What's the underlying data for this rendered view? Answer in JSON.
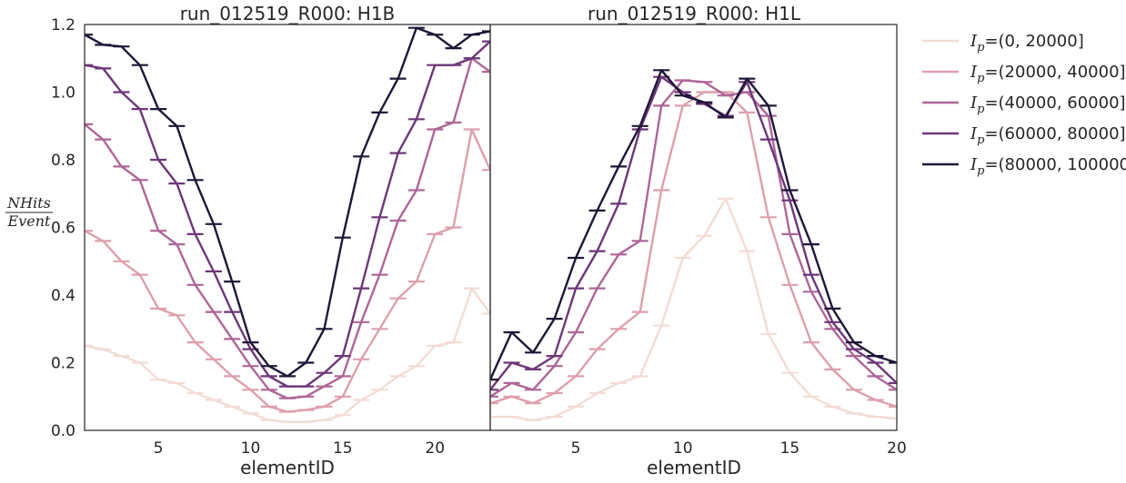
{
  "chart_data": {
    "type": "line",
    "ylabel_numerator": "NHits",
    "ylabel_denominator": "Event",
    "yticks": [
      "0.0",
      "0.2",
      "0.4",
      "0.6",
      "0.8",
      "1.0",
      "1.2"
    ],
    "ylim": [
      0,
      1.2
    ],
    "grid": false,
    "legend_position": "outside-right",
    "legend": {
      "symbol": "I",
      "subscript": "p",
      "series_labels": [
        "=(0, 20000]",
        "=(20000, 40000]",
        "=(40000, 60000]",
        "=(60000, 80000]",
        "=(80000, 100000]"
      ]
    },
    "series_colors": [
      "#f1ddd6",
      "#dda0ad",
      "#ad6796",
      "#6d3779",
      "#1f1637"
    ],
    "panels": [
      {
        "title": "run_012519_R000: H1B",
        "xlabel": "elementID",
        "xlim": [
          1,
          23
        ],
        "xticks": [
          5,
          10,
          15,
          20
        ],
        "x": [
          1,
          2,
          3,
          4,
          5,
          6,
          7,
          8,
          9,
          10,
          11,
          12,
          13,
          14,
          15,
          16,
          17,
          18,
          19,
          20,
          21,
          22,
          23
        ],
        "series": [
          {
            "values": [
              0.25,
              0.24,
              0.22,
              0.2,
              0.15,
              0.14,
              0.11,
              0.09,
              0.07,
              0.05,
              0.03,
              0.025,
              0.025,
              0.03,
              0.045,
              0.09,
              0.12,
              0.16,
              0.19,
              0.25,
              0.26,
              0.42,
              0.345
            ]
          },
          {
            "values": [
              0.59,
              0.56,
              0.5,
              0.46,
              0.36,
              0.34,
              0.26,
              0.21,
              0.16,
              0.12,
              0.07,
              0.055,
              0.06,
              0.07,
              0.1,
              0.21,
              0.3,
              0.39,
              0.44,
              0.58,
              0.6,
              0.89,
              0.77
            ]
          },
          {
            "values": [
              0.905,
              0.86,
              0.78,
              0.74,
              0.59,
              0.55,
              0.43,
              0.35,
              0.27,
              0.19,
              0.12,
              0.095,
              0.1,
              0.13,
              0.16,
              0.32,
              0.46,
              0.62,
              0.71,
              0.89,
              0.91,
              1.1,
              1.06
            ]
          },
          {
            "values": [
              1.08,
              1.07,
              1.0,
              0.95,
              0.8,
              0.73,
              0.58,
              0.47,
              0.35,
              0.24,
              0.16,
              0.13,
              0.13,
              0.17,
              0.22,
              0.42,
              0.63,
              0.82,
              0.92,
              1.08,
              1.08,
              1.1,
              1.15
            ]
          },
          {
            "values": [
              1.17,
              1.14,
              1.135,
              1.08,
              0.95,
              0.9,
              0.74,
              0.61,
              0.44,
              0.26,
              0.19,
              0.16,
              0.2,
              0.3,
              0.57,
              0.81,
              0.94,
              1.04,
              1.19,
              1.17,
              1.13,
              1.17,
              1.18
            ]
          }
        ]
      },
      {
        "title": "run_012519_R000: H1L",
        "xlabel": "elementID",
        "xlim": [
          1,
          20
        ],
        "xticks": [
          5,
          10,
          15,
          20
        ],
        "x": [
          1,
          2,
          3,
          4,
          5,
          6,
          7,
          8,
          9,
          10,
          11,
          12,
          13,
          14,
          15,
          16,
          17,
          18,
          19,
          20
        ],
        "series": [
          {
            "values": [
              0.04,
              0.04,
              0.03,
              0.04,
              0.07,
              0.11,
              0.14,
              0.16,
              0.31,
              0.51,
              0.575,
              0.685,
              0.53,
              0.285,
              0.17,
              0.1,
              0.07,
              0.05,
              0.04,
              0.035
            ]
          },
          {
            "values": [
              0.08,
              0.1,
              0.08,
              0.11,
              0.16,
              0.24,
              0.3,
              0.35,
              0.71,
              0.96,
              1.0,
              1.0,
              0.94,
              0.63,
              0.43,
              0.26,
              0.18,
              0.12,
              0.09,
              0.07
            ]
          },
          {
            "values": [
              0.1,
              0.14,
              0.12,
              0.19,
              0.29,
              0.42,
              0.52,
              0.56,
              0.96,
              1.035,
              1.03,
              0.99,
              1.0,
              0.93,
              0.58,
              0.41,
              0.3,
              0.22,
              0.16,
              0.12
            ]
          },
          {
            "values": [
              0.12,
              0.2,
              0.18,
              0.22,
              0.42,
              0.53,
              0.67,
              0.89,
              1.045,
              1.0,
              0.965,
              0.93,
              1.03,
              0.86,
              0.68,
              0.46,
              0.32,
              0.24,
              0.2,
              0.14
            ]
          },
          {
            "values": [
              0.15,
              0.29,
              0.23,
              0.33,
              0.51,
              0.65,
              0.78,
              0.9,
              1.065,
              0.99,
              0.97,
              0.925,
              1.04,
              0.96,
              0.71,
              0.55,
              0.36,
              0.26,
              0.22,
              0.2
            ]
          }
        ]
      }
    ]
  }
}
